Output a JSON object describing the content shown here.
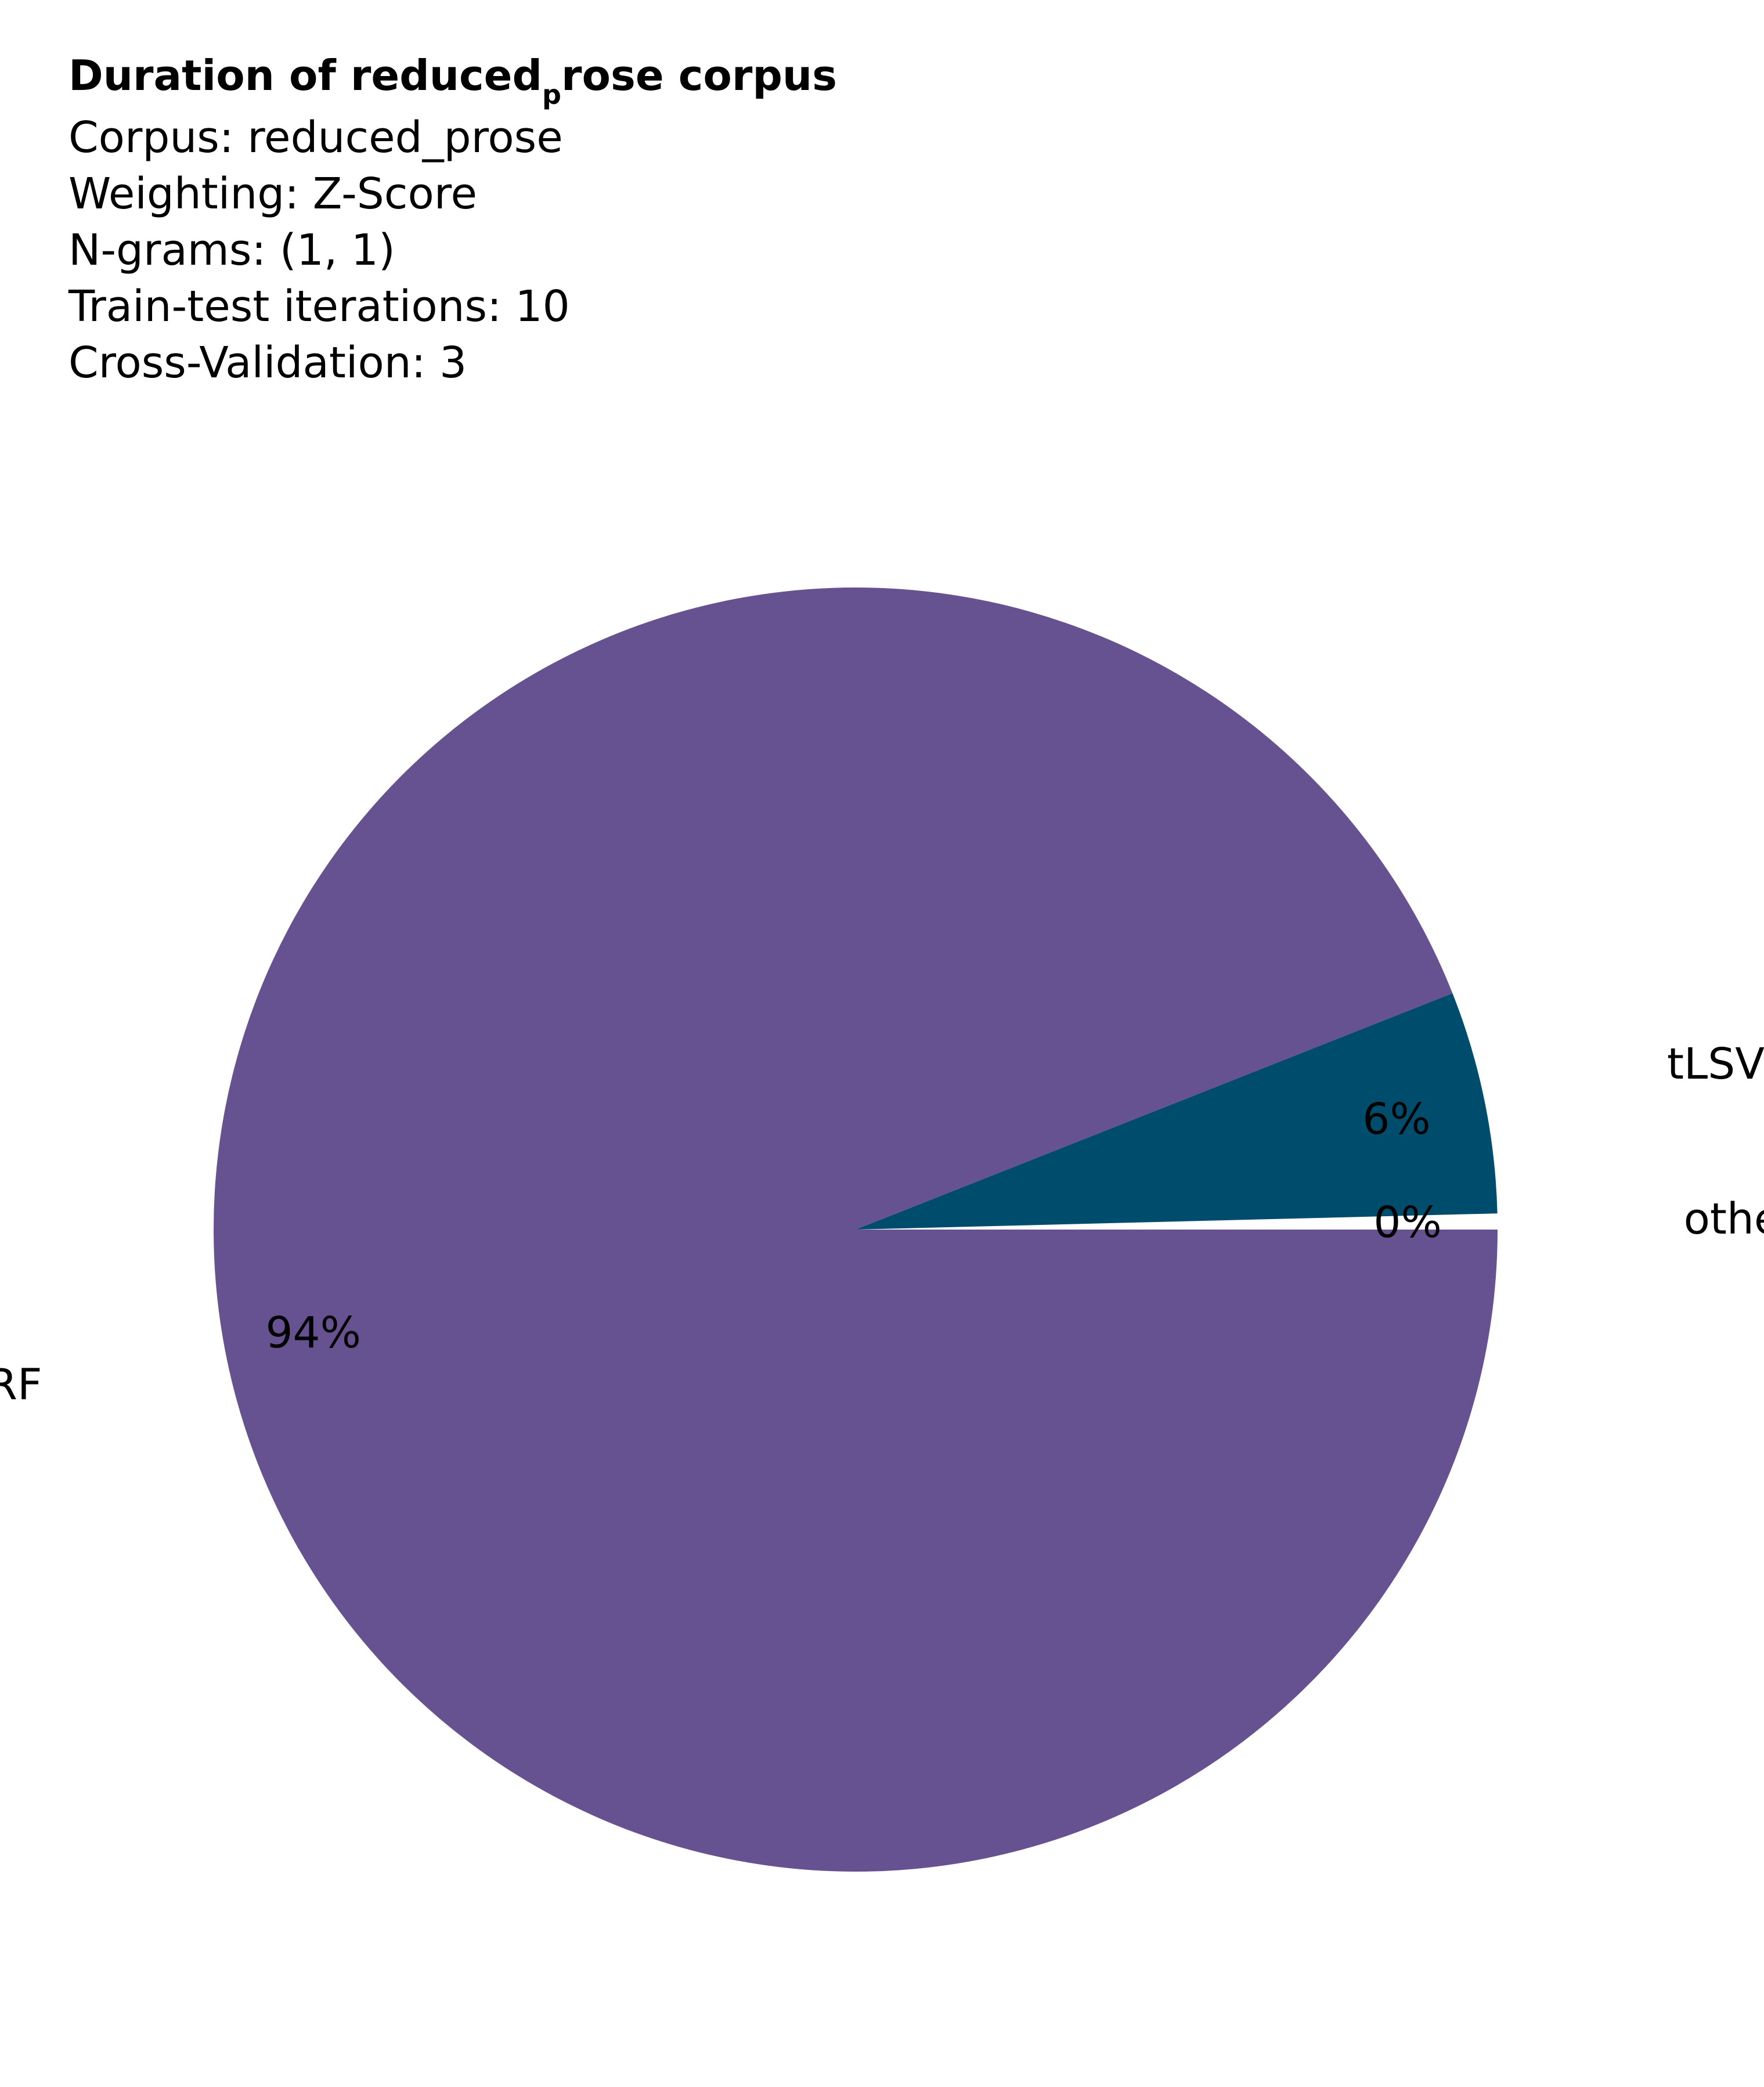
{
  "chart_data": {
    "type": "pie",
    "title_main": "Duration of reduced",
    "title_subscript": "p",
    "title_rest": "rose corpus",
    "info_lines": [
      "Corpus: reduced_prose",
      "Weighting: Z-Score",
      "N-grams: (1, 1)",
      "Train-test iterations: 10",
      "Cross-Validation: 3"
    ],
    "slices": [
      {
        "name": "other",
        "value": 0.4,
        "percent_label": "0%",
        "color": "#ffffff"
      },
      {
        "name": "tLSVM",
        "value": 5.6,
        "percent_label": "6%",
        "color": "#004c6d"
      },
      {
        "name": "tRF",
        "value": 94.0,
        "percent_label": "94%",
        "color": "#665191"
      }
    ]
  }
}
